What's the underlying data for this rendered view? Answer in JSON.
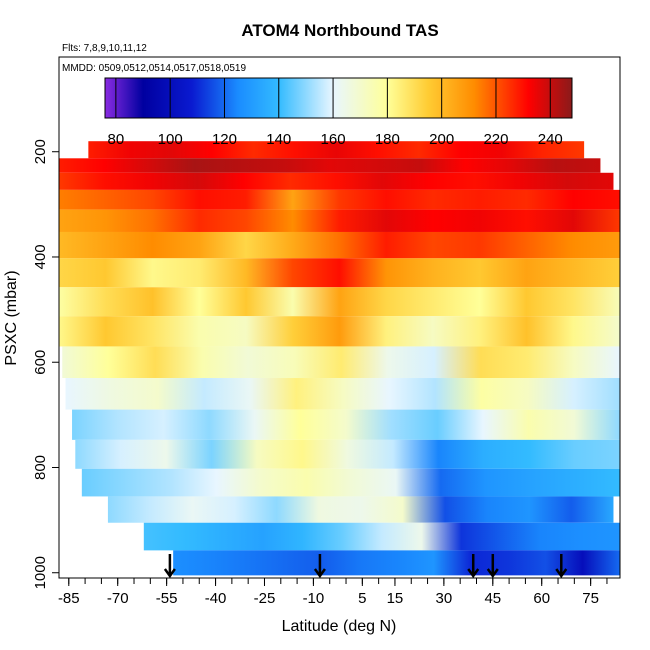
{
  "chart_data": {
    "type": "heatmap",
    "title": "ATOM4 Northbound TAS",
    "subtitle_flights": "Flts: 7,8,9,10,11,12",
    "subtitle_dates": "MMDD: 0509,0512,0514,0517,0518,0519",
    "xlabel": "Latitude (deg N)",
    "ylabel": "PSXC (mbar)",
    "xlim": [
      -88,
      84
    ],
    "ylim": [
      1010,
      20
    ],
    "x_ticks": [
      -85,
      -70,
      -55,
      -40,
      -25,
      -10,
      5,
      15,
      30,
      45,
      60,
      75
    ],
    "y_ticks": [
      200,
      400,
      600,
      800,
      1000
    ],
    "colorbar": {
      "range": [
        76,
        248
      ],
      "ticks": [
        80,
        100,
        120,
        140,
        160,
        180,
        200,
        220,
        240
      ],
      "colors": [
        "#8a2be2",
        "#0000a0",
        "#0a1ad0",
        "#1a8cff",
        "#33bbff",
        "#e8f6ff",
        "#ffff99",
        "#ffcc33",
        "#ff8c00",
        "#ff0000",
        "#8b1a1a"
      ],
      "color_positions": [
        76,
        90,
        108,
        125,
        140,
        160,
        180,
        195,
        212,
        232,
        248
      ]
    },
    "arrow_latitudes": [
      -54,
      -8,
      39,
      45,
      66
    ],
    "series": [
      {
        "name": "band-200",
        "pressure": 200,
        "x_range": [
          -79,
          73
        ],
        "values": [
          228,
          234,
          236,
          232,
          226,
          230,
          235,
          230,
          226,
          232,
          234,
          227,
          224
        ]
      },
      {
        "name": "band-225",
        "pressure": 225,
        "x_range": [
          -88,
          78
        ],
        "values": [
          228,
          232,
          238,
          244,
          242,
          240,
          236,
          238,
          240,
          232,
          236,
          242,
          240
        ]
      },
      {
        "name": "band-255",
        "pressure": 255,
        "x_range": [
          -88,
          82
        ],
        "values": [
          224,
          230,
          234,
          238,
          232,
          226,
          230,
          236,
          232,
          230,
          234,
          238,
          236
        ]
      },
      {
        "name": "band-290",
        "pressure": 290,
        "x_range": [
          -88,
          84
        ],
        "values": [
          214,
          218,
          222,
          230,
          228,
          206,
          224,
          230,
          226,
          228,
          226,
          232,
          230
        ]
      },
      {
        "name": "band-330",
        "pressure": 330,
        "x_range": [
          -88,
          84
        ],
        "values": [
          206,
          210,
          216,
          226,
          222,
          212,
          228,
          236,
          232,
          234,
          230,
          236,
          224
        ]
      },
      {
        "name": "band-375",
        "pressure": 375,
        "x_range": [
          -88,
          84
        ],
        "values": [
          200,
          206,
          212,
          206,
          192,
          204,
          216,
          228,
          222,
          224,
          218,
          212,
          208
        ]
      },
      {
        "name": "band-430",
        "pressure": 430,
        "x_range": [
          -88,
          84
        ],
        "values": [
          192,
          196,
          182,
          186,
          200,
          222,
          230,
          210,
          202,
          196,
          206,
          200,
          194
        ]
      },
      {
        "name": "band-485",
        "pressure": 485,
        "x_range": [
          -88,
          84
        ],
        "values": [
          178,
          190,
          198,
          180,
          196,
          176,
          206,
          192,
          186,
          180,
          196,
          188,
          174
        ]
      },
      {
        "name": "band-540",
        "pressure": 540,
        "x_range": [
          -88,
          84
        ],
        "values": [
          182,
          196,
          188,
          176,
          172,
          194,
          208,
          184,
          172,
          184,
          198,
          182,
          170
        ]
      },
      {
        "name": "band-600",
        "pressure": 600,
        "x_range": [
          -87,
          84
        ],
        "values": [
          168,
          180,
          190,
          176,
          168,
          174,
          186,
          164,
          158,
          190,
          186,
          172,
          160
        ]
      },
      {
        "name": "band-660",
        "pressure": 660,
        "x_range": [
          -86,
          84
        ],
        "values": [
          160,
          166,
          170,
          156,
          162,
          184,
          172,
          160,
          154,
          178,
          172,
          158,
          152
        ]
      },
      {
        "name": "band-720",
        "pressure": 720,
        "x_range": [
          -84,
          84
        ],
        "values": [
          148,
          154,
          158,
          150,
          162,
          180,
          170,
          152,
          146,
          160,
          176,
          168,
          150
        ]
      },
      {
        "name": "band-775",
        "pressure": 775,
        "x_range": [
          -83,
          84
        ],
        "values": [
          150,
          158,
          164,
          148,
          172,
          182,
          166,
          156,
          124,
          136,
          140,
          146,
          148
        ]
      },
      {
        "name": "band-830",
        "pressure": 830,
        "x_range": [
          -81,
          84
        ],
        "values": [
          146,
          150,
          154,
          160,
          170,
          176,
          168,
          162,
          120,
          128,
          132,
          136,
          140
        ]
      },
      {
        "name": "band-880",
        "pressure": 880,
        "x_range": [
          -73,
          82
        ],
        "values": [
          150,
          156,
          162,
          158,
          150,
          166,
          164,
          170,
          116,
          124,
          128,
          118,
          134
        ]
      },
      {
        "name": "band-930",
        "pressure": 930,
        "x_range": [
          -62,
          84
        ],
        "values": [
          142,
          140,
          136,
          132,
          138,
          146,
          156,
          164,
          112,
          118,
          124,
          126,
          128
        ]
      },
      {
        "name": "band-985",
        "pressure": 985,
        "x_range": [
          -53,
          84
        ],
        "values": [
          126,
          124,
          122,
          120,
          118,
          122,
          124,
          128,
          110,
          112,
          116,
          100,
          120
        ]
      }
    ]
  }
}
